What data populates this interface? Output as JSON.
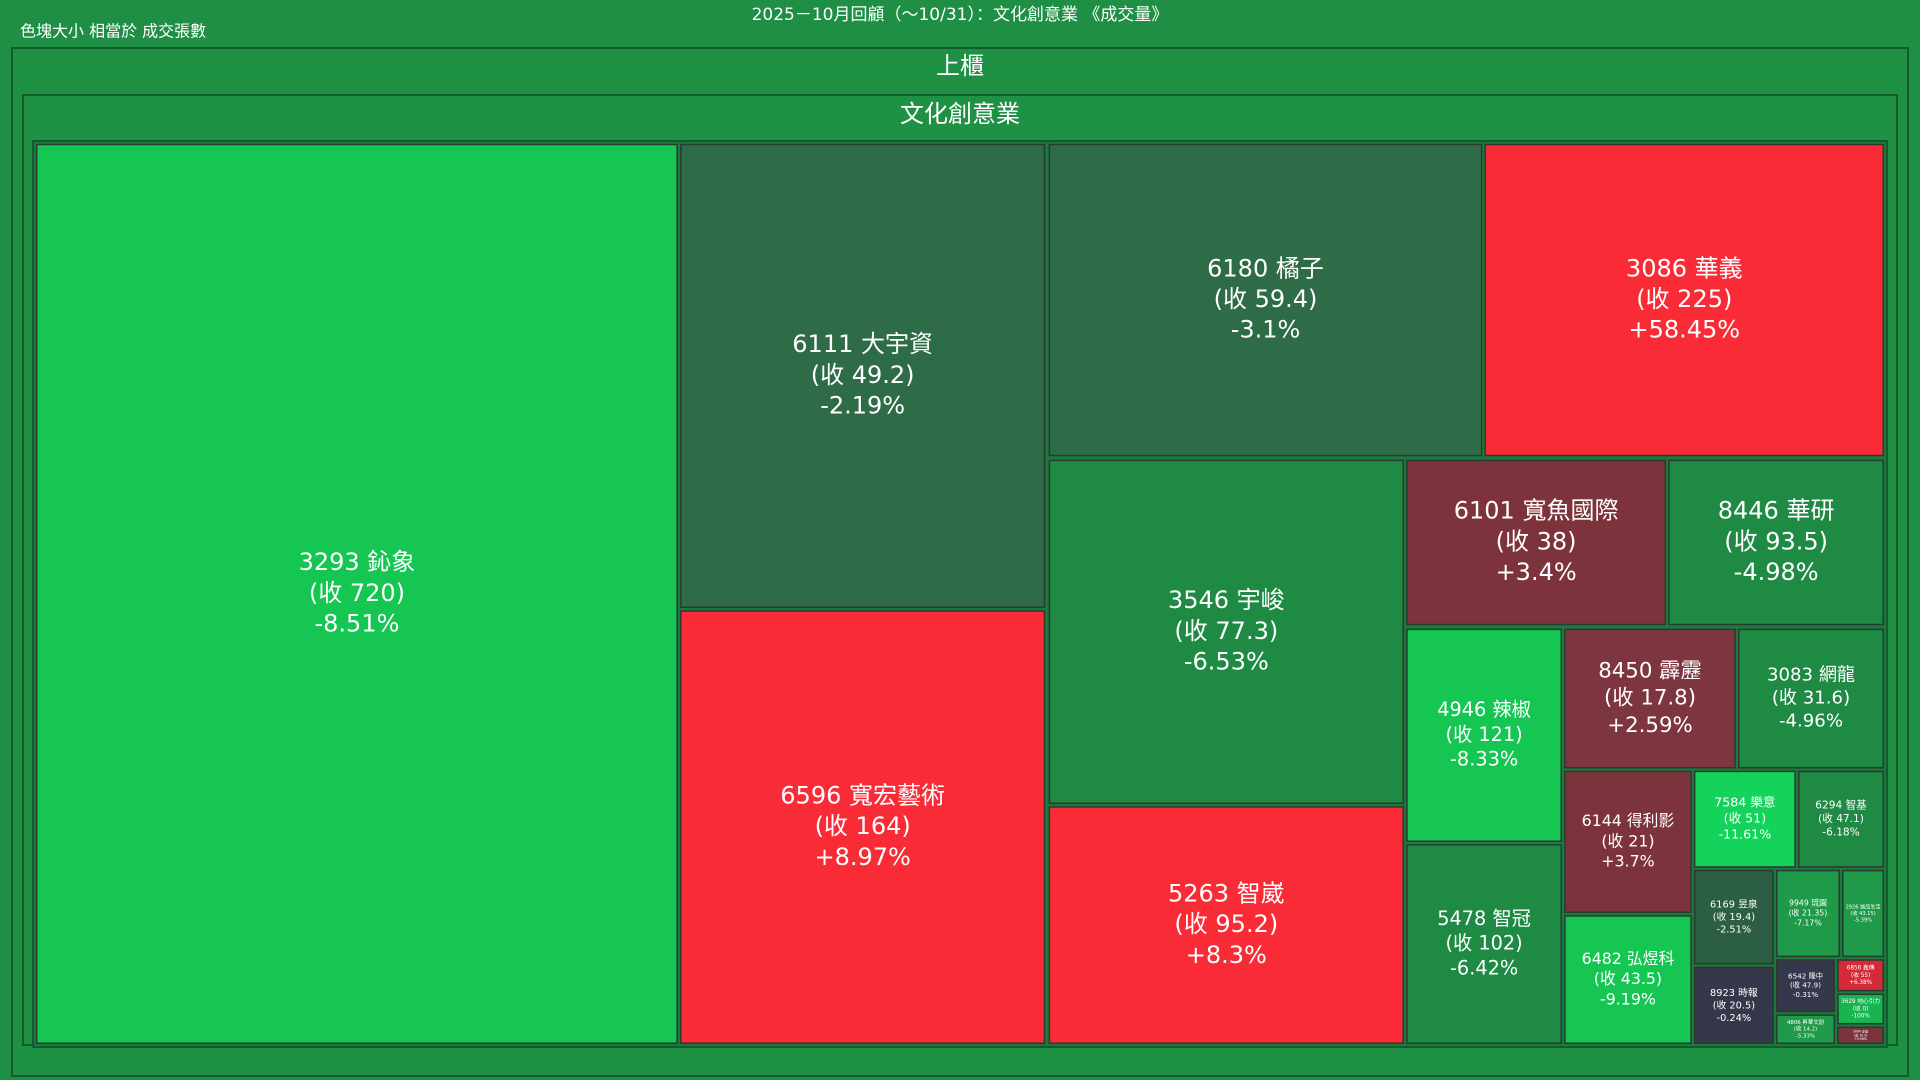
{
  "chart_data": {
    "type": "treemap",
    "title": "2025－10月回顧（～10/31）：文化創意業 《成交量》",
    "subtitle": "色塊大小 相當於 成交張數",
    "groups": [
      "上櫃",
      "文化創意業"
    ],
    "tiles": [
      {
        "label": "3293 鈊象",
        "close": "(收 720)",
        "change": "-8.51%",
        "color": "#16c653"
      },
      {
        "label": "6111 大宇資",
        "close": "(收 49.2)",
        "change": "-2.19%",
        "color": "#2e6b47"
      },
      {
        "label": "6596 寬宏藝術",
        "close": "(收 164)",
        "change": "+8.97%",
        "color": "#f92b37"
      },
      {
        "label": "6180 橘子",
        "close": "(收 59.4)",
        "change": "-3.1%",
        "color": "#2e6b47"
      },
      {
        "label": "3086 華義",
        "close": "(收 225)",
        "change": "+58.45%",
        "color": "#f92b37"
      },
      {
        "label": "3546 宇峻",
        "close": "(收 77.3)",
        "change": "-6.53%",
        "color": "#1f8a44"
      },
      {
        "label": "5263 智崴",
        "close": "(收 95.2)",
        "change": "+8.3%",
        "color": "#f92b37"
      },
      {
        "label": "6101 寬魚國際",
        "close": "(收 38)",
        "change": "+3.4%",
        "color": "#7d333c"
      },
      {
        "label": "8446 華研",
        "close": "(收 93.5)",
        "change": "-4.98%",
        "color": "#1f8a44"
      },
      {
        "label": "4946 辣椒",
        "close": "(收 121)",
        "change": "-8.33%",
        "color": "#16c653"
      },
      {
        "label": "5478 智冠",
        "close": "(收 102)",
        "change": "-6.42%",
        "color": "#1f8a44"
      },
      {
        "label": "8450 霹靂",
        "close": "(收 17.8)",
        "change": "+2.59%",
        "color": "#7d3540"
      },
      {
        "label": "3083 網龍",
        "close": "(收 31.6)",
        "change": "-4.96%",
        "color": "#1f8a44"
      },
      {
        "label": "6144 得利影",
        "close": "(收 21)",
        "change": "+3.7%",
        "color": "#7d333c"
      },
      {
        "label": "6482 弘煜科",
        "close": "(收 43.5)",
        "change": "-9.19%",
        "color": "#16c653"
      },
      {
        "label": "7584 樂意",
        "close": "(收 51)",
        "change": "-11.61%",
        "color": "#14d35a"
      },
      {
        "label": "6294 智基",
        "close": "(收 47.1)",
        "change": "-6.18%",
        "color": "#1f8a44"
      },
      {
        "label": "6169 昱泉",
        "close": "(收 19.4)",
        "change": "-2.51%",
        "color": "#2b5e42"
      },
      {
        "label": "8923 時報",
        "close": "(收 20.5)",
        "change": "-0.24%",
        "color": "#34384a"
      },
      {
        "label": "9949 琉園",
        "close": "(收 21.35)",
        "change": "-7.17%",
        "color": "#1f9a49"
      },
      {
        "label": "2926 誠品生活",
        "close": "(收 43.15)",
        "change": "-5.39%",
        "color": "#1f9a49"
      },
      {
        "label": "6542 隆中",
        "close": "(收 47.9)",
        "change": "-0.31%",
        "color": "#34384a"
      },
      {
        "label": "6856 鑫傳",
        "close": "(收 55)",
        "change": "+6.38%",
        "color": "#d32b37"
      },
      {
        "label": "3629 地心引力",
        "close": "(收 0)",
        "change": "-100%",
        "color": "#18b450"
      },
      {
        "label": "4806 昇華文創",
        "close": "(收 14.2)",
        "change": "-5.33%",
        "color": "#1f9a49"
      },
      {
        "label": "3064 泰偉",
        "close": "(收 10.5)",
        "change": "+0.96%",
        "color": "#7d333c"
      }
    ]
  }
}
